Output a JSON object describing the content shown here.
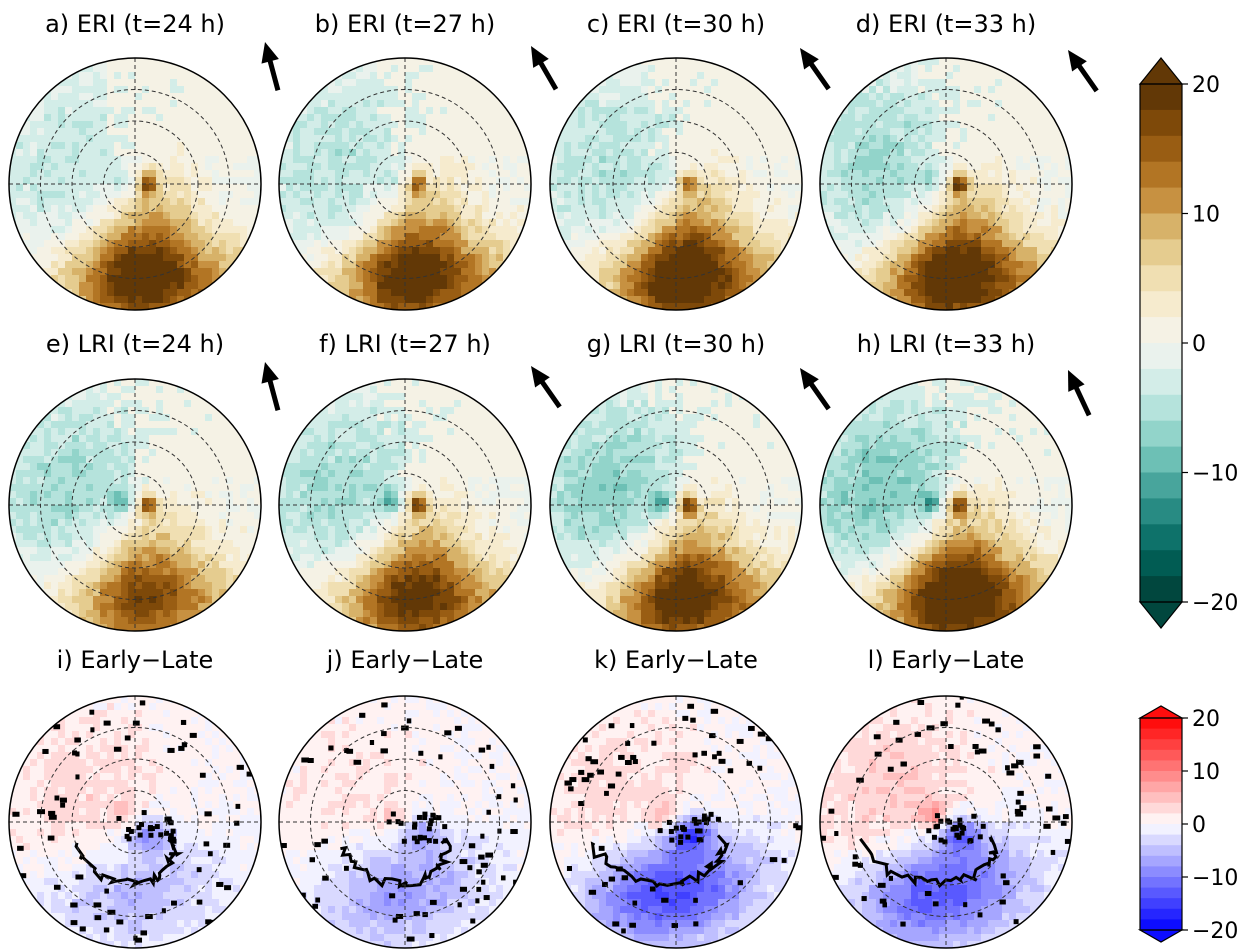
{
  "chart_data": {
    "type": "heatmap",
    "projection": "polar",
    "grid": true,
    "range_rings": 4,
    "panels": [
      {
        "label": "a) ERI (t=24 h)",
        "row": 0,
        "col": 0,
        "colormap": "brbg",
        "shear_direction_deg": 15,
        "features": {
          "downshear_left_max": 16,
          "upshear_min": -4,
          "center_dipole": [
            16,
            -4
          ],
          "contour_outline": false
        }
      },
      {
        "label": "b) ERI (t=27 h)",
        "row": 0,
        "col": 1,
        "colormap": "brbg",
        "shear_direction_deg": 30,
        "features": {
          "downshear_left_max": 16,
          "upshear_min": -5,
          "center_dipole": [
            14,
            -3
          ],
          "contour_outline": false
        }
      },
      {
        "label": "c) ERI (t=30 h)",
        "row": 0,
        "col": 2,
        "colormap": "brbg",
        "shear_direction_deg": 35,
        "features": {
          "downshear_left_max": 17,
          "upshear_min": -5,
          "center_dipole": [
            12,
            -4
          ],
          "contour_outline": false
        }
      },
      {
        "label": "d) ERI (t=33 h)",
        "row": 0,
        "col": 3,
        "colormap": "brbg",
        "shear_direction_deg": 35,
        "features": {
          "downshear_left_max": 17,
          "upshear_min": -6,
          "center_dipole": [
            18,
            -4
          ],
          "contour_outline": false
        }
      },
      {
        "label": "e) LRI (t=24 h)",
        "row": 1,
        "col": 0,
        "colormap": "brbg",
        "shear_direction_deg": 15,
        "features": {
          "downshear_left_max": 13,
          "upshear_min": -6,
          "center_dipole": [
            18,
            -8
          ],
          "contour_outline": false
        }
      },
      {
        "label": "f) LRI (t=27 h)",
        "row": 1,
        "col": 1,
        "colormap": "brbg",
        "shear_direction_deg": 35,
        "features": {
          "downshear_left_max": 15,
          "upshear_min": -6,
          "center_dipole": [
            18,
            -9
          ],
          "contour_outline": false
        }
      },
      {
        "label": "g) LRI (t=30 h)",
        "row": 1,
        "col": 2,
        "colormap": "brbg",
        "shear_direction_deg": 35,
        "features": {
          "downshear_left_max": 16,
          "upshear_min": -7,
          "center_dipole": [
            18,
            -10
          ],
          "contour_outline": false
        }
      },
      {
        "label": "h) LRI (t=33 h)",
        "row": 1,
        "col": 3,
        "colormap": "brbg",
        "shear_direction_deg": 25,
        "features": {
          "downshear_left_max": 18,
          "upshear_min": -8,
          "center_dipole": [
            18,
            -10
          ],
          "contour_outline": false
        }
      },
      {
        "label": "i) Early−Late",
        "row": 2,
        "col": 0,
        "colormap": "bwr",
        "shear_direction_deg": null,
        "features": {
          "downshear_left_max": -6,
          "upshear_min": 3,
          "center_dipole": [
            -8,
            3
          ],
          "contour_outline": true
        }
      },
      {
        "label": "j) Early−Late",
        "row": 2,
        "col": 1,
        "colormap": "bwr",
        "shear_direction_deg": null,
        "features": {
          "downshear_left_max": -8,
          "upshear_min": 2,
          "center_dipole": [
            -6,
            4
          ],
          "contour_outline": true
        }
      },
      {
        "label": "k) Early−Late",
        "row": 2,
        "col": 2,
        "colormap": "bwr",
        "shear_direction_deg": null,
        "features": {
          "downshear_left_max": -15,
          "upshear_min": 3,
          "center_dipole": [
            -12,
            5
          ],
          "contour_outline": true
        }
      },
      {
        "label": "l) Early−Late",
        "row": 2,
        "col": 3,
        "colormap": "bwr",
        "shear_direction_deg": null,
        "features": {
          "downshear_left_max": -14,
          "upshear_min": 4,
          "center_dipole": [
            -10,
            8
          ],
          "contour_outline": true
        }
      }
    ],
    "colorbars": [
      {
        "name": "brbg",
        "vmin": -20,
        "vmax": 20,
        "levels": 20,
        "extend": "both",
        "ticks": [
          20,
          10,
          0,
          -10,
          -20
        ],
        "tick_labels": [
          "20",
          "10",
          "0",
          "−10",
          "−20"
        ]
      },
      {
        "name": "bwr",
        "vmin": -20,
        "vmax": 20,
        "levels": 20,
        "extend": "none",
        "ticks": [
          20,
          10,
          0,
          -10,
          -20
        ],
        "tick_labels": [
          "20",
          "10",
          "0",
          "−10",
          "−20"
        ]
      }
    ]
  },
  "colors": {
    "brbg_low": "#013d33",
    "brbg_mid": "#f5f5f0",
    "brbg_high": "#6e3d0a",
    "bwr_low": "#0000ff",
    "bwr_mid": "#ffffff",
    "bwr_high": "#ff0000",
    "axes": "#000000",
    "grid": "#333333"
  }
}
